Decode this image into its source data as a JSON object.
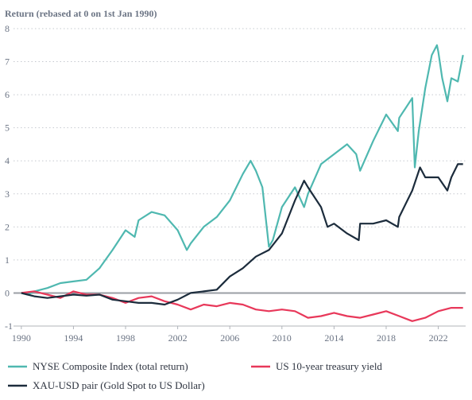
{
  "chart_data": {
    "type": "line",
    "title": "Return (rebased at 0 on 1st Jan 1990)",
    "xlabel": "",
    "ylabel": "",
    "xlim": [
      1989.4,
      2024.1
    ],
    "ylim": [
      -1,
      8
    ],
    "x_ticks": [
      1990,
      1994,
      1998,
      2002,
      2006,
      2010,
      2014,
      2018,
      2022
    ],
    "y_ticks": [
      -1,
      0,
      1,
      2,
      3,
      4,
      5,
      6,
      7,
      8
    ],
    "grid": "horizontal dotted",
    "legend_position": "bottom",
    "series": [
      {
        "name": "NYSE Composite Index (total return)",
        "color": "#4fb8b0",
        "points": [
          [
            1990,
            0
          ],
          [
            1990.5,
            -0.05
          ],
          [
            1991,
            0.05
          ],
          [
            1992,
            0.15
          ],
          [
            1993,
            0.3
          ],
          [
            1994,
            0.35
          ],
          [
            1995,
            0.4
          ],
          [
            1996,
            0.75
          ],
          [
            1997,
            1.3
          ],
          [
            1998,
            1.9
          ],
          [
            1998.7,
            1.7
          ],
          [
            1999,
            2.2
          ],
          [
            2000,
            2.45
          ],
          [
            2001,
            2.35
          ],
          [
            2002,
            1.9
          ],
          [
            2002.7,
            1.3
          ],
          [
            2003,
            1.5
          ],
          [
            2004,
            2.0
          ],
          [
            2005,
            2.3
          ],
          [
            2006,
            2.8
          ],
          [
            2007,
            3.6
          ],
          [
            2007.6,
            4.0
          ],
          [
            2008,
            3.7
          ],
          [
            2008.5,
            3.2
          ],
          [
            2009,
            1.4
          ],
          [
            2009.3,
            1.6
          ],
          [
            2010,
            2.6
          ],
          [
            2011,
            3.2
          ],
          [
            2011.7,
            2.6
          ],
          [
            2012,
            3.0
          ],
          [
            2013,
            3.9
          ],
          [
            2014,
            4.2
          ],
          [
            2015,
            4.5
          ],
          [
            2015.7,
            4.2
          ],
          [
            2016,
            3.7
          ],
          [
            2017,
            4.6
          ],
          [
            2018,
            5.4
          ],
          [
            2018.9,
            4.9
          ],
          [
            2019,
            5.3
          ],
          [
            2020,
            5.9
          ],
          [
            2020.2,
            3.8
          ],
          [
            2020.5,
            4.9
          ],
          [
            2021,
            6.2
          ],
          [
            2021.5,
            7.2
          ],
          [
            2021.9,
            7.5
          ],
          [
            2022,
            7.3
          ],
          [
            2022.3,
            6.5
          ],
          [
            2022.7,
            5.8
          ],
          [
            2023,
            6.5
          ],
          [
            2023.5,
            6.4
          ],
          [
            2023.9,
            7.2
          ]
        ]
      },
      {
        "name": "US 10-year treasury yield",
        "color": "#e8385a",
        "points": [
          [
            1990,
            0
          ],
          [
            1991,
            0.05
          ],
          [
            1992,
            -0.05
          ],
          [
            1993,
            -0.15
          ],
          [
            1994,
            0.05
          ],
          [
            1995,
            -0.05
          ],
          [
            1996,
            -0.05
          ],
          [
            1997,
            -0.15
          ],
          [
            1998,
            -0.3
          ],
          [
            1999,
            -0.15
          ],
          [
            2000,
            -0.1
          ],
          [
            2001,
            -0.25
          ],
          [
            2002,
            -0.35
          ],
          [
            2003,
            -0.5
          ],
          [
            2004,
            -0.35
          ],
          [
            2005,
            -0.4
          ],
          [
            2006,
            -0.3
          ],
          [
            2007,
            -0.35
          ],
          [
            2008,
            -0.5
          ],
          [
            2009,
            -0.55
          ],
          [
            2010,
            -0.5
          ],
          [
            2011,
            -0.55
          ],
          [
            2012,
            -0.75
          ],
          [
            2013,
            -0.7
          ],
          [
            2014,
            -0.6
          ],
          [
            2015,
            -0.7
          ],
          [
            2016,
            -0.75
          ],
          [
            2017,
            -0.65
          ],
          [
            2018,
            -0.55
          ],
          [
            2019,
            -0.7
          ],
          [
            2020,
            -0.85
          ],
          [
            2021,
            -0.75
          ],
          [
            2022,
            -0.55
          ],
          [
            2023,
            -0.45
          ],
          [
            2023.9,
            -0.45
          ]
        ]
      },
      {
        "name": "XAU-USD pair (Gold Spot to US Dollar)",
        "color": "#1c2c3c",
        "points": [
          [
            1990,
            0
          ],
          [
            1990.5,
            -0.05
          ],
          [
            1991,
            -0.1
          ],
          [
            1992,
            -0.15
          ],
          [
            1993,
            -0.1
          ],
          [
            1994,
            -0.05
          ],
          [
            1995,
            -0.08
          ],
          [
            1996,
            -0.05
          ],
          [
            1997,
            -0.2
          ],
          [
            1998,
            -0.25
          ],
          [
            1999,
            -0.3
          ],
          [
            2000,
            -0.3
          ],
          [
            2001,
            -0.35
          ],
          [
            2002,
            -0.2
          ],
          [
            2003,
            0
          ],
          [
            2004,
            0.05
          ],
          [
            2005,
            0.1
          ],
          [
            2006,
            0.5
          ],
          [
            2007,
            0.75
          ],
          [
            2008,
            1.1
          ],
          [
            2009,
            1.3
          ],
          [
            2010,
            1.8
          ],
          [
            2011,
            2.8
          ],
          [
            2011.7,
            3.4
          ],
          [
            2012,
            3.2
          ],
          [
            2013,
            2.6
          ],
          [
            2013.5,
            2.0
          ],
          [
            2014,
            2.1
          ],
          [
            2015,
            1.8
          ],
          [
            2015.9,
            1.6
          ],
          [
            2016,
            2.1
          ],
          [
            2017,
            2.1
          ],
          [
            2018,
            2.2
          ],
          [
            2018.9,
            2.0
          ],
          [
            2019,
            2.3
          ],
          [
            2020,
            3.1
          ],
          [
            2020.6,
            3.8
          ],
          [
            2021,
            3.5
          ],
          [
            2022,
            3.5
          ],
          [
            2022.7,
            3.1
          ],
          [
            2023,
            3.5
          ],
          [
            2023.5,
            3.9
          ],
          [
            2023.9,
            3.9
          ]
        ]
      }
    ]
  }
}
